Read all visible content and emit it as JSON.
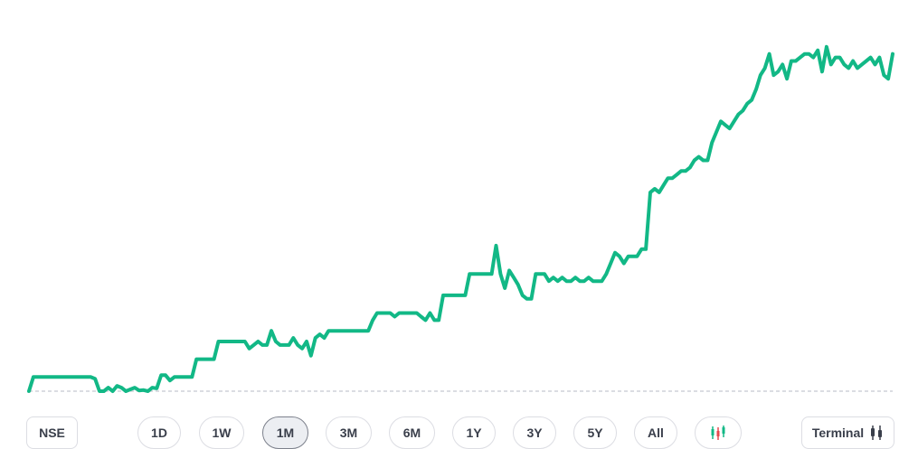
{
  "chart_data": {
    "type": "line",
    "color": "#12b886",
    "baseline_color": "#cfd2d8",
    "ylim": [
      0,
      100
    ],
    "values": [
      0,
      4,
      4,
      4,
      4,
      4,
      4,
      4,
      4,
      4,
      4,
      4,
      4,
      4,
      4,
      3.5,
      0,
      0,
      1,
      0,
      1.5,
      1,
      0,
      0.5,
      1,
      0.2,
      0.3,
      0,
      1,
      0.8,
      4.5,
      4.5,
      3,
      4,
      4,
      4,
      4,
      4,
      9,
      9,
      9,
      9,
      9,
      14,
      14,
      14,
      14,
      14,
      14,
      14,
      12,
      13,
      14,
      13,
      13,
      17,
      14,
      13,
      13,
      13,
      15,
      13,
      12,
      14,
      10,
      15,
      16,
      15,
      17,
      17,
      17,
      17,
      17,
      17,
      17,
      17,
      17,
      17,
      20,
      22,
      22,
      22,
      22,
      21,
      22,
      22,
      22,
      22,
      22,
      21,
      20,
      22,
      20,
      20,
      27,
      27,
      27,
      27,
      27,
      27,
      33,
      33,
      33,
      33,
      33,
      33,
      41,
      33,
      29,
      34,
      32,
      30,
      27,
      26,
      26,
      33,
      33,
      33,
      31,
      32,
      31,
      32,
      31,
      31,
      32,
      31,
      31,
      32,
      31,
      31,
      31,
      33,
      36,
      39,
      38,
      36,
      38,
      38,
      38,
      40,
      40,
      56,
      57,
      56,
      58,
      60,
      60,
      61,
      62,
      62,
      63,
      65,
      66,
      65,
      65,
      70,
      73,
      76,
      75,
      74,
      76,
      78,
      79,
      81,
      82,
      85,
      89,
      91,
      95,
      89,
      90,
      92,
      88,
      93,
      93,
      94,
      95,
      95,
      94,
      96,
      90,
      97,
      92,
      94,
      94,
      92,
      91,
      93,
      91,
      92,
      93,
      94,
      92,
      94,
      89,
      88,
      95
    ]
  },
  "controls": {
    "exchange": "NSE",
    "ranges": [
      "1D",
      "1W",
      "1M",
      "3M",
      "6M",
      "1Y",
      "3Y",
      "5Y",
      "All"
    ],
    "selected_range": "1M",
    "terminal": "Terminal",
    "candle_up_color": "#12b886",
    "candle_down_color": "#e5484d"
  }
}
